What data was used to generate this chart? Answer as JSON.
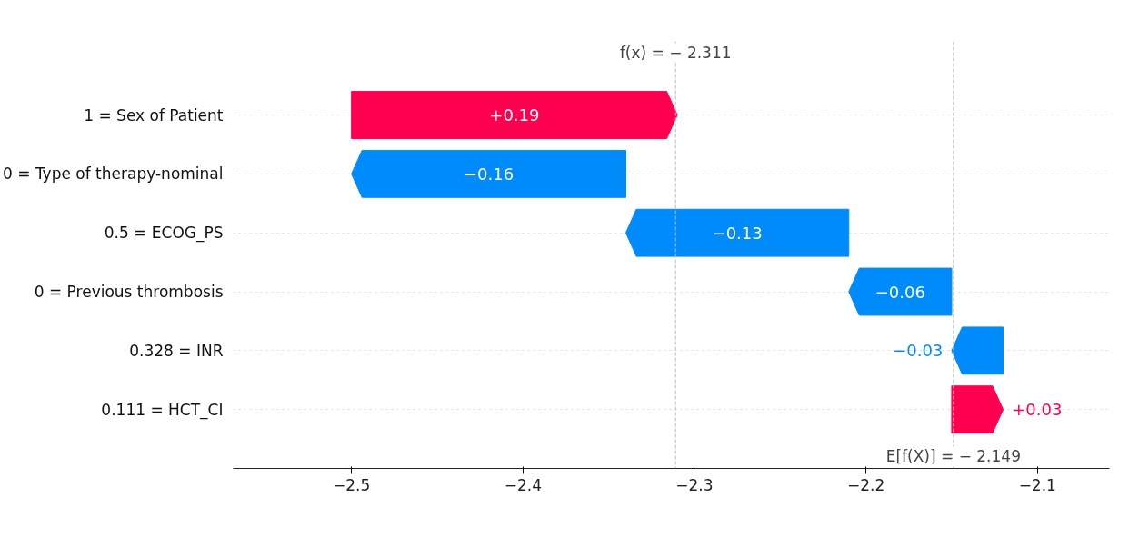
{
  "chart_data": {
    "type": "bar",
    "orientation": "horizontal",
    "categories": [
      "1 = Sex of Patient",
      "0 = Type of therapy-nominal",
      "0.5 = ECOG_PS",
      "0 = Previous thrombosis",
      "0.328 = INR",
      "0.111 = HCT_CI"
    ],
    "values": [
      0.19,
      -0.16,
      -0.13,
      -0.06,
      -0.03,
      0.03
    ],
    "base": [
      -2.5,
      -2.34,
      -2.21,
      -2.15,
      -2.12,
      -2.15
    ],
    "colors": [
      "#ff0051",
      "#008bfb",
      "#008bfb",
      "#008bfb",
      "#008bfb",
      "#ff0051"
    ],
    "value_labels": [
      "+0.19",
      "−0.16",
      "−0.13",
      "−0.06",
      "−0.03",
      "+0.03"
    ],
    "xlim": [
      -2.569,
      -2.058
    ],
    "xticks": [
      {
        "value": -2.5,
        "label": "−2.5"
      },
      {
        "value": -2.4,
        "label": "−2.4"
      },
      {
        "value": -2.3,
        "label": "−2.3"
      },
      {
        "value": -2.2,
        "label": "−2.2"
      },
      {
        "value": -2.1,
        "label": "−2.1"
      }
    ],
    "ref_lines": [
      {
        "axis": "x",
        "value": -2.311,
        "label": "f(x) = − 2.311",
        "color": "#bbbbbb",
        "line_style": "dashed"
      },
      {
        "axis": "x",
        "value": -2.149,
        "label": "E[f(X)] = − 2.149",
        "color": "#bbbbbb",
        "line_style": "dashed"
      }
    ],
    "grid": "y"
  }
}
